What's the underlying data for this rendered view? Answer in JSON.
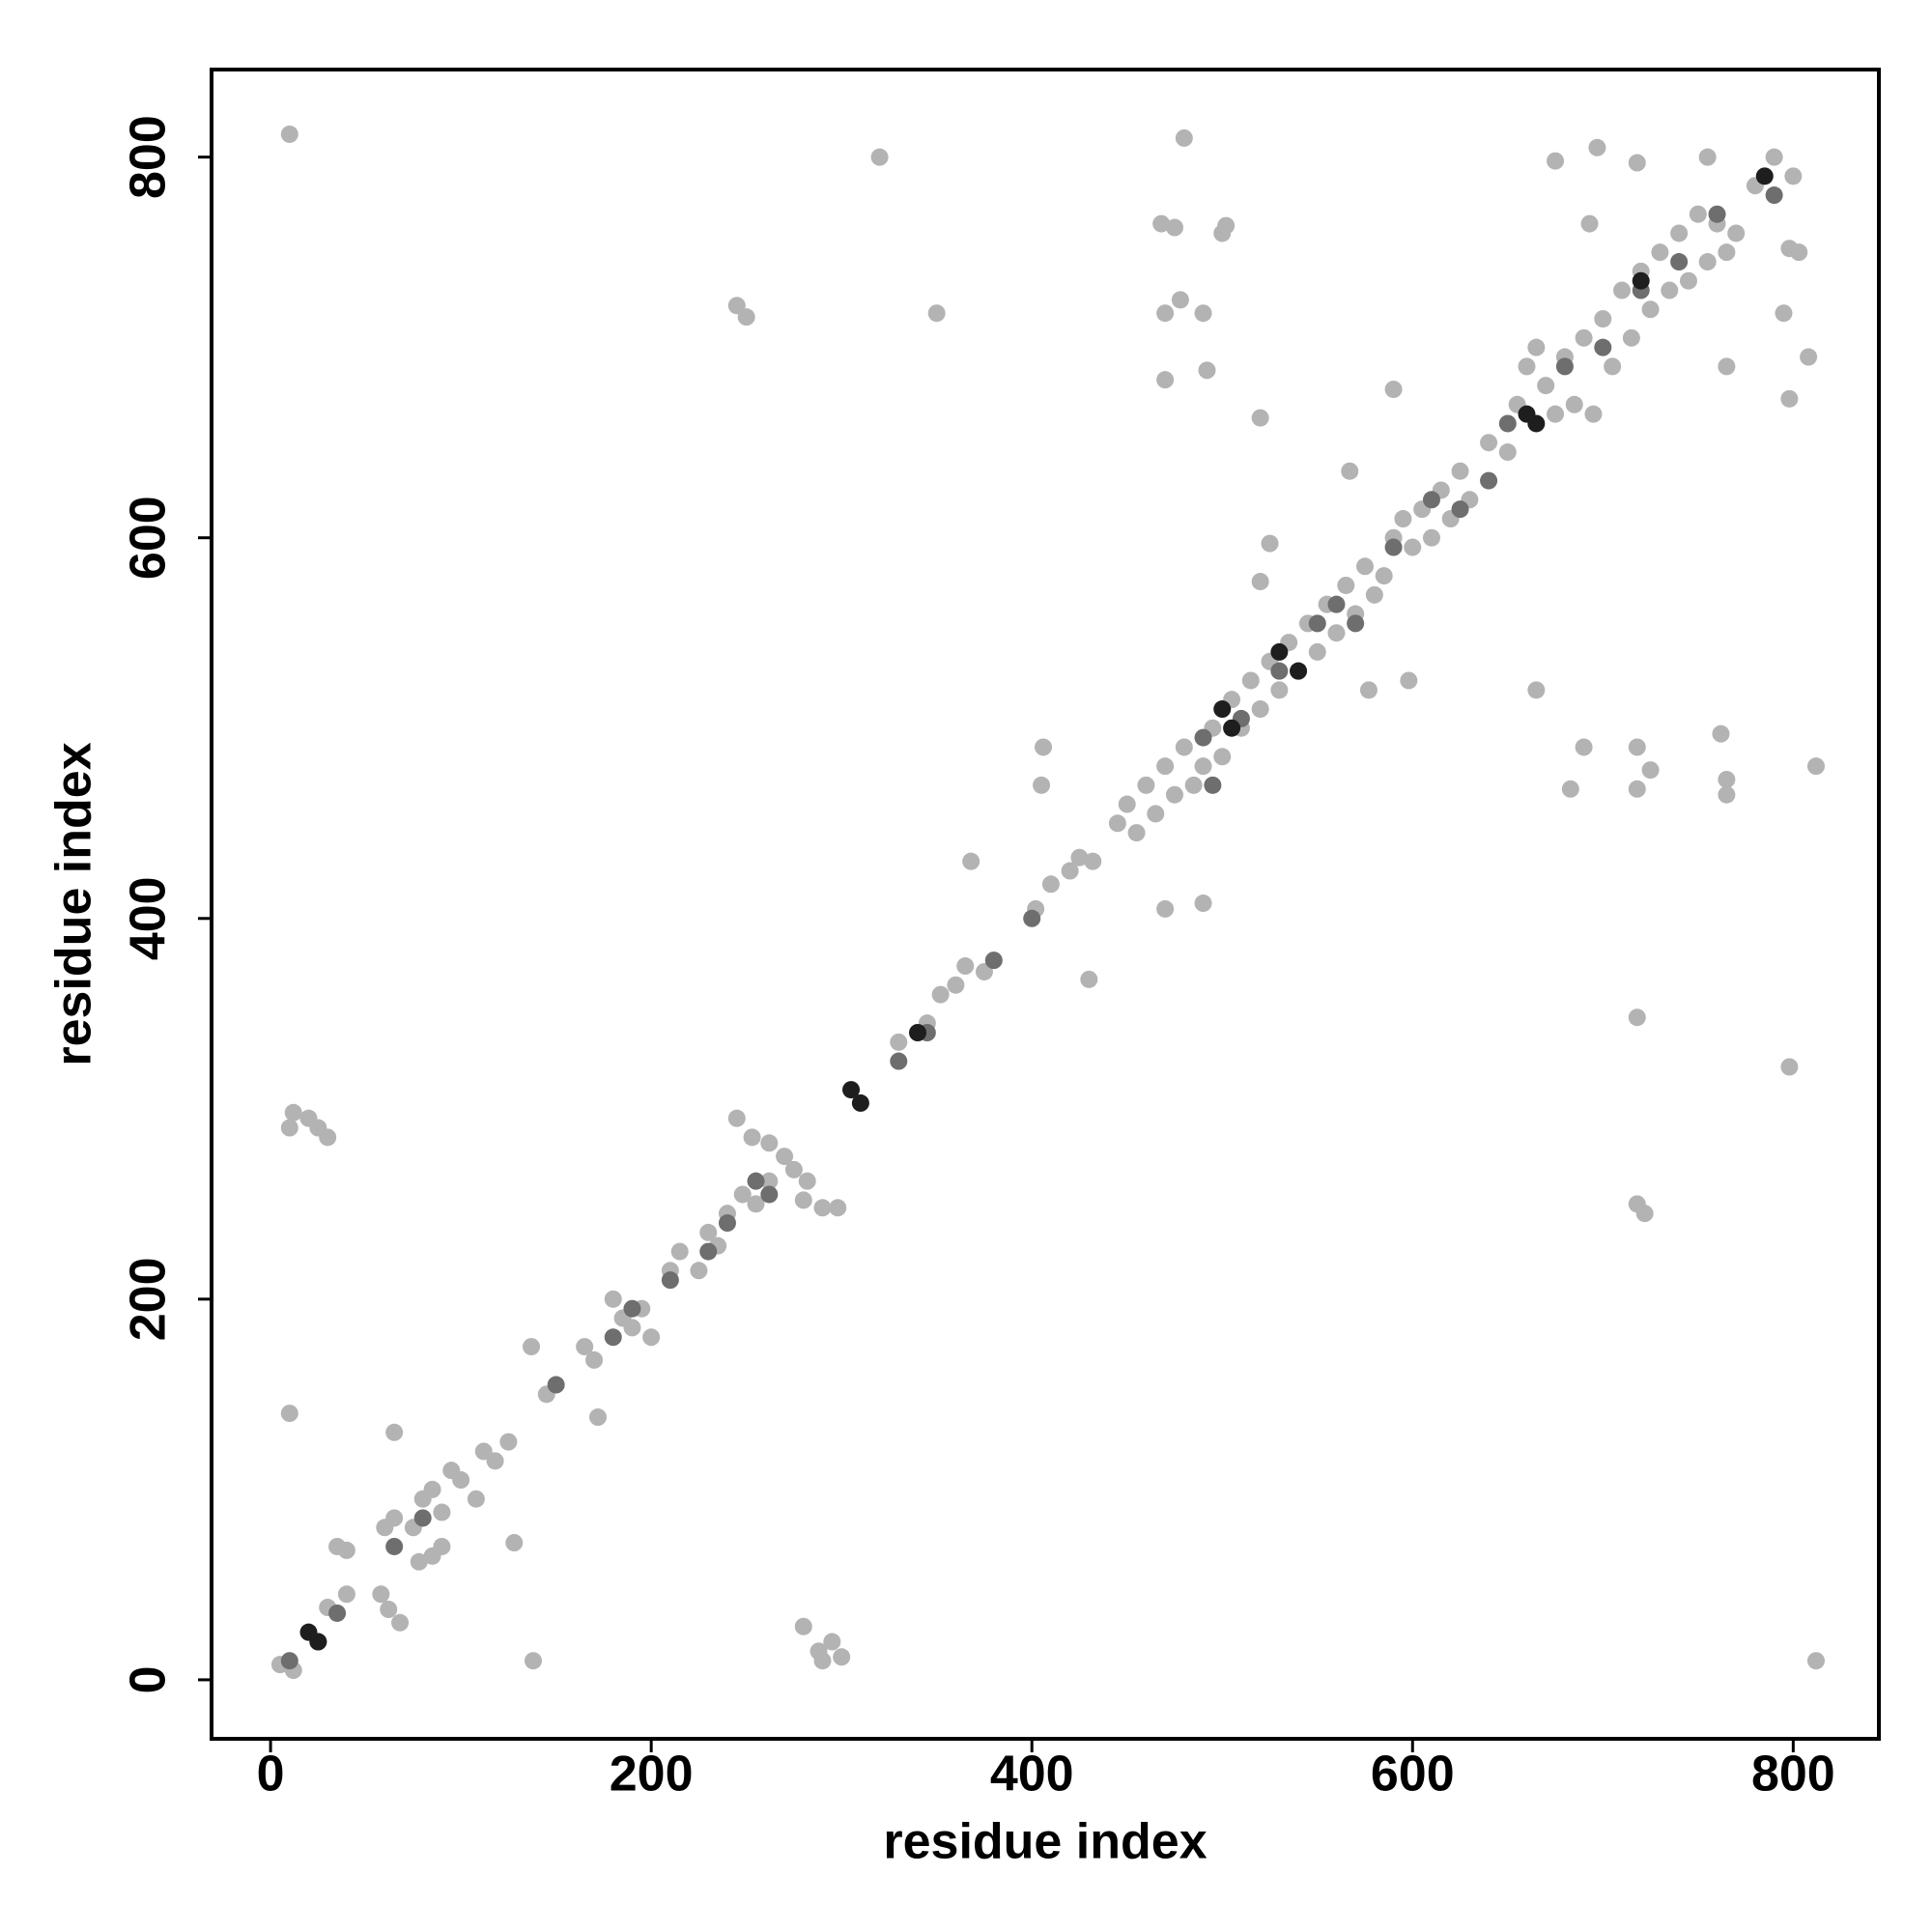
{
  "chart_data": {
    "type": "scatter",
    "xlabel": "residue index",
    "ylabel": "residue index",
    "xlim": [
      -31,
      845
    ],
    "ylim": [
      -31,
      846
    ],
    "xticks": [
      0,
      200,
      400,
      600,
      800
    ],
    "yticks": [
      0,
      200,
      400,
      600,
      800
    ],
    "grid": false,
    "series": [
      {
        "color": "#b3b3b3",
        "x": [
          10,
          320,
          350,
          245,
          250,
          480,
          468,
          475,
          500,
          502,
          470,
          478,
          490,
          492,
          470,
          520,
          590,
          567,
          525,
          520,
          577,
          598,
          665,
          693,
          697,
          675,
          718,
          755,
          790,
          800,
          798,
          803,
          795,
          808,
          798,
          765,
          690,
          683,
          718,
          725,
          718,
          762,
          765,
          765,
          812,
          718,
          798,
          718,
          722,
          812,
          406,
          405,
          470,
          490,
          430,
          368,
          280,
          288,
          295,
          290,
          300,
          10,
          12,
          20,
          30,
          25,
          10,
          138,
          137,
          172,
          65,
          128,
          40,
          35,
          58,
          62,
          68,
          245,
          253,
          262,
          270,
          275,
          282,
          290,
          298,
          280,
          5,
          12,
          30,
          40,
          60,
          65,
          75,
          80,
          85,
          90,
          95,
          100,
          108,
          112,
          118,
          125,
          90,
          85,
          78,
          145,
          165,
          170,
          180,
          185,
          190,
          195,
          200,
          210,
          215,
          225,
          230,
          235,
          240,
          248,
          255,
          262,
          330,
          345,
          352,
          360,
          365,
          375,
          402,
          410,
          420,
          425,
          432,
          445,
          450,
          455,
          460,
          465,
          470,
          475,
          480,
          485,
          490,
          495,
          500,
          505,
          510,
          515,
          520,
          525,
          530,
          535,
          540,
          545,
          550,
          555,
          560,
          565,
          570,
          575,
          580,
          585,
          590,
          595,
          600,
          605,
          610,
          615,
          620,
          625,
          630,
          640,
          650,
          655,
          660,
          665,
          670,
          675,
          680,
          685,
          690,
          695,
          700,
          705,
          710,
          715,
          720,
          725,
          730,
          735,
          740,
          745,
          750,
          755,
          760,
          765,
          770,
          780
        ],
        "y": [
          812,
          800,
          718,
          722,
          716,
          810,
          765,
          763,
          760,
          764,
          718,
          725,
          718,
          688,
          683,
          663,
          678,
          635,
          597,
          577,
          520,
          525,
          520,
          765,
          805,
          798,
          797,
          800,
          800,
          790,
          752,
          750,
          718,
          695,
          673,
          690,
          490,
          468,
          490,
          478,
          468,
          497,
          473,
          465,
          480,
          348,
          322,
          250,
          245,
          10,
          490,
          470,
          405,
          408,
          368,
          430,
          28,
          15,
          20,
          10,
          12,
          290,
          298,
          295,
          285,
          290,
          140,
          10,
          175,
          138,
          130,
          72,
          68,
          70,
          45,
          37,
          30,
          295,
          285,
          282,
          275,
          268,
          262,
          248,
          248,
          252,
          8,
          5,
          38,
          45,
          80,
          85,
          80,
          95,
          100,
          88,
          110,
          105,
          95,
          120,
          115,
          125,
          70,
          65,
          62,
          150,
          175,
          168,
          200,
          190,
          185,
          195,
          180,
          215,
          225,
          215,
          235,
          228,
          245,
          255,
          250,
          262,
          335,
          345,
          360,
          365,
          375,
          372,
          405,
          418,
          425,
          432,
          430,
          450,
          460,
          445,
          470,
          455,
          480,
          465,
          490,
          470,
          480,
          500,
          485,
          515,
          500,
          525,
          510,
          535,
          520,
          545,
          530,
          555,
          540,
          565,
          550,
          575,
          560,
          585,
          570,
          580,
          600,
          610,
          595,
          615,
          600,
          625,
          610,
          635,
          620,
          650,
          645,
          670,
          690,
          700,
          680,
          665,
          695,
          670,
          705,
          665,
          715,
          690,
          730,
          705,
          740,
          720,
          750,
          730,
          760,
          735,
          770,
          745,
          765,
          750,
          760,
          785
        ]
      },
      {
        "color": "#6e6e6e",
        "x": [
          10,
          25,
          35,
          65,
          80,
          150,
          180,
          190,
          210,
          230,
          240,
          255,
          262,
          330,
          345,
          380,
          400,
          490,
          495,
          510,
          530,
          550,
          560,
          570,
          590,
          610,
          625,
          640,
          650,
          680,
          700,
          720,
          740,
          760,
          790
        ],
        "y": [
          10,
          20,
          35,
          70,
          85,
          155,
          180,
          195,
          210,
          225,
          240,
          262,
          255,
          325,
          340,
          378,
          400,
          495,
          470,
          505,
          530,
          555,
          565,
          555,
          595,
          620,
          615,
          630,
          660,
          690,
          700,
          730,
          745,
          770,
          780
        ]
      },
      {
        "color": "#1e1e1e",
        "x": [
          20,
          25,
          305,
          310,
          340,
          500,
          505,
          530,
          540,
          660,
          665,
          720,
          785
        ],
        "y": [
          25,
          20,
          310,
          303,
          340,
          510,
          500,
          540,
          530,
          665,
          660,
          735,
          790
        ]
      }
    ]
  }
}
